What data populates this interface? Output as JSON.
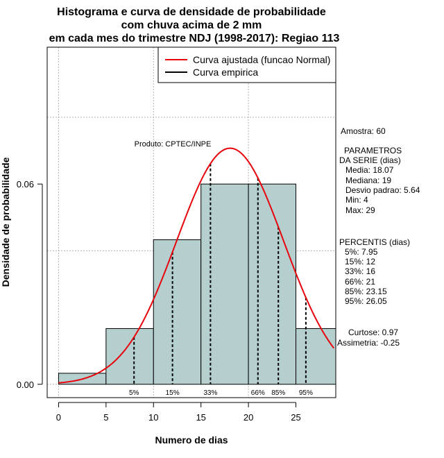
{
  "chart_data": {
    "type": "histogram",
    "title_lines": [
      "Histograma e curva de densidade de probabilidade",
      "com chuva acima de 2 mm",
      "em cada mes do trimestre NDJ (1998-2017): Regiao 113"
    ],
    "xlabel": "Numero de dias",
    "ylabel": "Densidade de probabilidade",
    "xlim": [
      -1.2,
      29.2
    ],
    "ylim": [
      -0.004,
      0.101
    ],
    "x_ticks": [
      0,
      5,
      10,
      15,
      20,
      25
    ],
    "x_tick_labels": [
      "0",
      "5",
      "10",
      "15",
      "20",
      "25"
    ],
    "y_ticks": [
      0,
      0.06
    ],
    "y_tick_labels": [
      "0.00",
      "0.06"
    ],
    "bins": [
      {
        "start": 0,
        "end": 5,
        "density": 0.0033
      },
      {
        "start": 5,
        "end": 10,
        "density": 0.0167
      },
      {
        "start": 10,
        "end": 15,
        "density": 0.0433
      },
      {
        "start": 15,
        "end": 20,
        "density": 0.06
      },
      {
        "start": 20,
        "end": 25,
        "density": 0.06
      },
      {
        "start": 25,
        "end": 30,
        "density": 0.0167
      }
    ],
    "fitted_curve": {
      "name": "Curva ajustada (funcao Normal)",
      "distribution": "normal",
      "mean": 18.07,
      "sd": 5.64,
      "x_from": 0,
      "x_to": 29
    },
    "empirical_curve": {
      "name": "Curva empirica"
    },
    "percentile_lines": [
      {
        "label": "5%",
        "x": 7.95
      },
      {
        "label": "15%",
        "x": 12
      },
      {
        "label": "33%",
        "x": 16
      },
      {
        "label": "66%",
        "x": 21
      },
      {
        "label": "85%",
        "x": 23.15
      },
      {
        "label": "95%",
        "x": 26.05
      }
    ],
    "grid": true,
    "legend_position": "top-right",
    "colors": {
      "bars": "#b5cfcf",
      "fitted": "#e8000b",
      "grid": "#b0b0b0",
      "axis": "#000000"
    }
  },
  "annotations": {
    "produto": "Produto: CPTEC/INPE"
  },
  "side_panel": {
    "amostra": "Amostra: 60",
    "param_header": "PARAMETROS",
    "param_sub": "DA SERIE (dias)",
    "params": [
      "Media: 18.07",
      "Mediana: 19",
      "Desvio padrao: 5.64",
      "Min: 4",
      "Max: 29"
    ],
    "perc_header": "PERCENTIS (dias)",
    "percentis": [
      "5%: 7.95",
      "15%: 12",
      "33%: 16",
      "66%: 21",
      "85%: 23.15",
      "95%: 26.05"
    ],
    "curtose": "Curtose: 0.97",
    "assimetria": "Assimetria: -0.25"
  }
}
